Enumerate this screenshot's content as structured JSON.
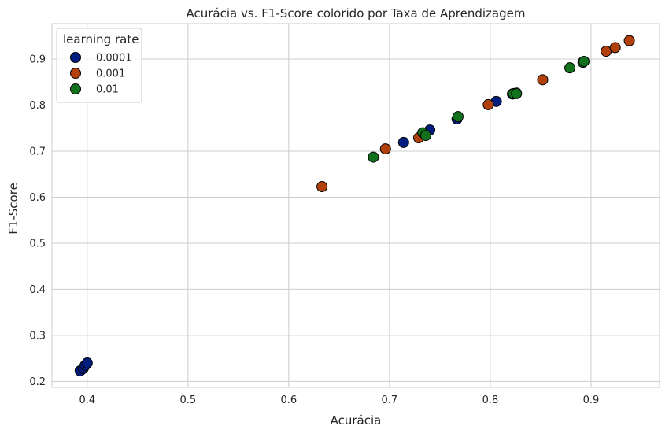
{
  "chart_data": {
    "type": "scatter",
    "title": "Acurácia vs. F1-Score colorido por Taxa de Aprendizagem",
    "xlabel": "Acurácia",
    "ylabel": "F1-Score",
    "xlim": [
      0.365,
      0.968
    ],
    "ylim": [
      0.187,
      0.977
    ],
    "xticks": [
      0.4,
      0.5,
      0.6,
      0.7,
      0.8,
      0.9
    ],
    "xtick_labels": [
      "0.4",
      "0.5",
      "0.6",
      "0.7",
      "0.8",
      "0.9"
    ],
    "yticks": [
      0.2,
      0.3,
      0.4,
      0.5,
      0.6,
      0.7,
      0.8,
      0.9
    ],
    "ytick_labels": [
      "0.2",
      "0.3",
      "0.4",
      "0.5",
      "0.6",
      "0.7",
      "0.8",
      "0.9"
    ],
    "grid": true,
    "legend": {
      "title": "learning rate",
      "position": "top-left"
    },
    "series": [
      {
        "name": "0.0001",
        "color": "#001c7f",
        "x": [
          0.393,
          0.396,
          0.398,
          0.4,
          0.714,
          0.74,
          0.767,
          0.806,
          0.822,
          0.826
        ],
        "y": [
          0.223,
          0.228,
          0.235,
          0.24,
          0.719,
          0.746,
          0.77,
          0.808,
          0.824,
          0.826
        ]
      },
      {
        "name": "0.001",
        "color": "#b1400d",
        "x": [
          0.633,
          0.696,
          0.729,
          0.798,
          0.852,
          0.915,
          0.924,
          0.938
        ],
        "y": [
          0.623,
          0.705,
          0.729,
          0.801,
          0.855,
          0.917,
          0.925,
          0.94
        ]
      },
      {
        "name": "0.01",
        "color": "#12711c",
        "x": [
          0.684,
          0.733,
          0.736,
          0.768,
          0.823,
          0.826,
          0.879,
          0.892,
          0.893
        ],
        "y": [
          0.687,
          0.74,
          0.734,
          0.775,
          0.825,
          0.825,
          0.881,
          0.893,
          0.895
        ]
      }
    ]
  }
}
